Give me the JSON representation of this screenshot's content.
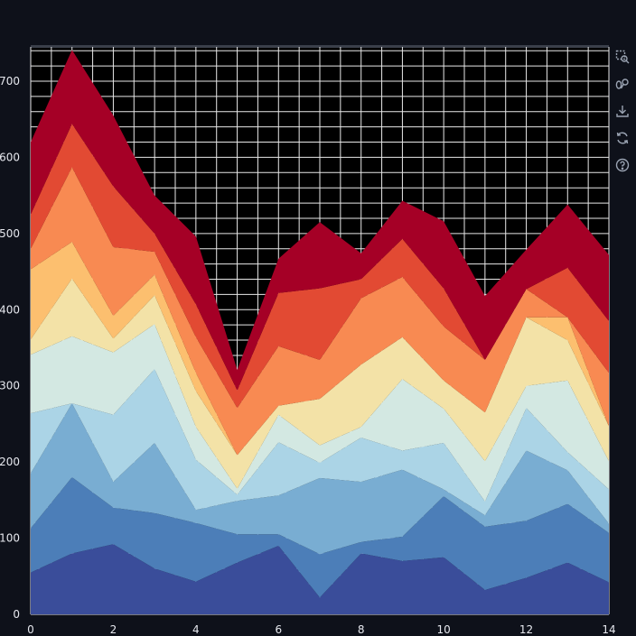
{
  "chart_data": {
    "type": "area",
    "stacked": true,
    "title": "",
    "xlabel": "",
    "ylabel": "",
    "x": [
      0,
      1,
      2,
      3,
      4,
      5,
      6,
      7,
      8,
      9,
      10,
      11,
      12,
      13,
      14
    ],
    "xlim": [
      0,
      14
    ],
    "ylim": [
      0,
      745
    ],
    "xticks": [
      0,
      2,
      4,
      6,
      8,
      10,
      12,
      14
    ],
    "yticks": [
      0,
      100,
      200,
      300,
      400,
      500,
      600,
      700
    ],
    "grid": true,
    "legend": "none",
    "series": [
      {
        "color": "#3a4d9a",
        "values": [
          55,
          80,
          92,
          60,
          43,
          68,
          90,
          22,
          80,
          70,
          75,
          32,
          48,
          68,
          42
        ]
      },
      {
        "color": "#4c7eb8",
        "values": [
          58,
          100,
          48,
          73,
          77,
          37,
          15,
          57,
          15,
          32,
          80,
          83,
          75,
          77,
          65
        ]
      },
      {
        "color": "#79add2",
        "values": [
          72,
          97,
          34,
          92,
          17,
          44,
          51,
          100,
          79,
          88,
          9,
          15,
          92,
          44,
          12
        ]
      },
      {
        "color": "#abd4e6",
        "values": [
          79,
          0,
          88,
          97,
          66,
          8,
          70,
          20,
          58,
          25,
          61,
          18,
          56,
          24,
          45
        ]
      },
      {
        "color": "#d3e8e2",
        "values": [
          77,
          88,
          82,
          59,
          43,
          8,
          36,
          23,
          14,
          94,
          45,
          53,
          29,
          94,
          37
        ]
      },
      {
        "color": "#f3e2a7",
        "values": [
          20,
          76,
          18,
          38,
          47,
          44,
          12,
          61,
          82,
          55,
          37,
          64,
          90,
          53,
          46
        ]
      },
      {
        "color": "#fcbf6f",
        "values": [
          92,
          48,
          30,
          27,
          24,
          0,
          0,
          0,
          0,
          0,
          0,
          0,
          0,
          30,
          0
        ]
      },
      {
        "color": "#f88a52",
        "values": [
          27,
          98,
          90,
          30,
          47,
          62,
          78,
          51,
          87,
          79,
          71,
          69,
          37,
          0,
          70
        ]
      },
      {
        "color": "#e24a33",
        "values": [
          45,
          57,
          80,
          24,
          43,
          23,
          70,
          94,
          25,
          50,
          50,
          0,
          0,
          65,
          68
        ]
      },
      {
        "color": "#a50026",
        "values": [
          95,
          97,
          93,
          50,
          89,
          27,
          45,
          87,
          34,
          50,
          88,
          84,
          52,
          83,
          87
        ]
      }
    ]
  },
  "toolbar": {
    "icons": [
      "zoom-select-icon",
      "reset-zoom-icon",
      "download-icon",
      "refresh-icon",
      "help-icon"
    ]
  },
  "colors": {
    "background": "#0e111a",
    "plot_background": "#000000",
    "grid": "#e8e8e8",
    "text": "#e6e8ee",
    "accent": "#3aa0ff"
  }
}
